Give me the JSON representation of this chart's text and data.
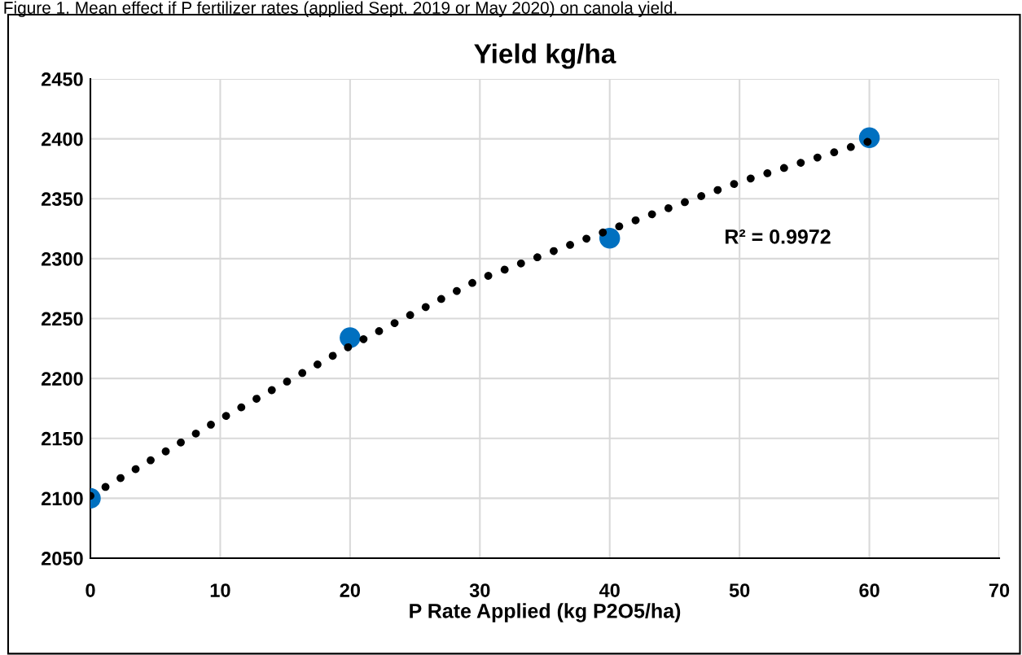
{
  "chart_data": {
    "type": "scatter",
    "title": "Yield kg/ha",
    "xlabel": "P Rate Applied (kg P2O5/ha)",
    "annotations": [
      "Figure 1. Mean effect if P fertilizer rates (applied Sept. 2019 or May 2020) on canola yield.",
      "R² = 0.9972"
    ],
    "series": [
      {
        "color": "#0070c0",
        "x": [
          0,
          20,
          40,
          60
        ],
        "values": [
          2100,
          2234,
          2317,
          2401
        ],
        "marker": "circle"
      },
      {
        "type": "line",
        "color": "#000000",
        "x": [
          0,
          10,
          20,
          30,
          40,
          50,
          60
        ],
        "values": [
          2102,
          2166,
          2227,
          2283,
          2324,
          2364,
          2398
        ],
        "line_style": "dotted",
        "marker": "none"
      }
    ],
    "xlim": [
      0,
      70
    ],
    "xticks": [
      0,
      10,
      20,
      30,
      40,
      50,
      60,
      70
    ],
    "ylim": [
      2050,
      2450
    ],
    "yticks": [
      2050,
      2100,
      2150,
      2200,
      2250,
      2300,
      2350,
      2400,
      2450
    ],
    "grid": true,
    "legend": false
  }
}
